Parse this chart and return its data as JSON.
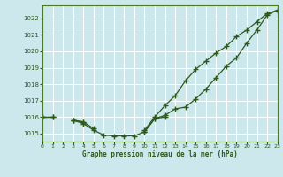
{
  "title": "Graphe pression niveau de la mer (hPa)",
  "bg_color": "#cce8ed",
  "grid_color": "#ffffff",
  "line_color": "#2d5a1b",
  "marker_color": "#2d5a1b",
  "hours": [
    0,
    1,
    2,
    3,
    4,
    5,
    6,
    7,
    8,
    9,
    10,
    11,
    12,
    13,
    14,
    15,
    16,
    17,
    18,
    19,
    20,
    21,
    22,
    23
  ],
  "series1": [
    1016.0,
    1016.0,
    null,
    1015.8,
    1015.6,
    1015.2,
    1014.9,
    1014.85,
    1014.85,
    1014.85,
    1015.1,
    1015.9,
    1016.0,
    null,
    null,
    null,
    null,
    null,
    null,
    null,
    null,
    null,
    null,
    null
  ],
  "series2": [
    1016.0,
    1016.0,
    null,
    1015.8,
    1015.7,
    1015.3,
    null,
    null,
    null,
    null,
    1015.1,
    1015.9,
    1016.1,
    1016.5,
    1016.6,
    1017.1,
    1017.7,
    1018.4,
    1019.1,
    1019.6,
    1020.5,
    1021.3,
    1022.2,
    1022.5
  ],
  "series3": [
    null,
    null,
    null,
    1015.8,
    1015.7,
    null,
    null,
    null,
    null,
    null,
    1015.2,
    1016.0,
    1016.7,
    1017.3,
    1018.2,
    1018.9,
    1019.4,
    1019.9,
    1020.3,
    1020.9,
    1021.3,
    1021.8,
    1022.3,
    1022.5
  ],
  "ylim": [
    1014.5,
    1022.8
  ],
  "yticks": [
    1015,
    1016,
    1017,
    1018,
    1019,
    1020,
    1021,
    1022
  ],
  "xlim": [
    0,
    23
  ],
  "xticks": [
    0,
    1,
    2,
    3,
    4,
    5,
    6,
    7,
    8,
    9,
    10,
    11,
    12,
    13,
    14,
    15,
    16,
    17,
    18,
    19,
    20,
    21,
    22,
    23
  ]
}
